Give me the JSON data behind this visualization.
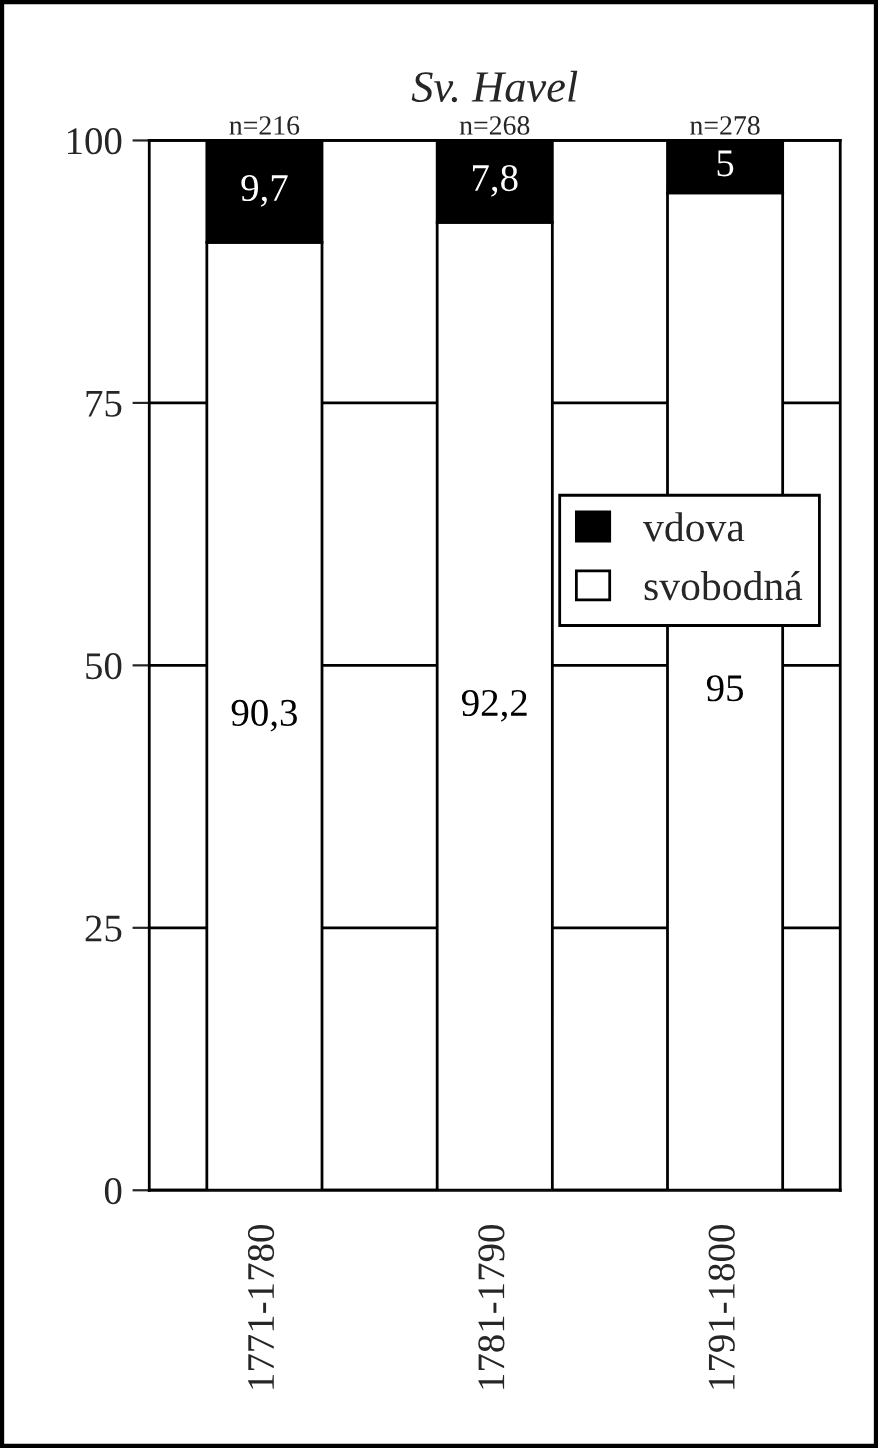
{
  "chart_data": {
    "type": "bar",
    "title": "Sv. Havel",
    "stacked": true,
    "categories": [
      "1771-1780",
      "1781-1790",
      "1791-1800"
    ],
    "series": [
      {
        "name": "svobodná",
        "color": "#ffffff",
        "values": [
          90.3,
          92.2,
          95
        ],
        "value_labels": [
          "90,3",
          "92,2",
          "95"
        ]
      },
      {
        "name": "vdova",
        "color": "#000000",
        "values": [
          9.7,
          7.8,
          5
        ],
        "value_labels": [
          "9,7",
          "7,8",
          "5"
        ]
      }
    ],
    "annotations": [
      {
        "text": "n=216",
        "x": "1771-1780",
        "y": 100
      },
      {
        "text": "n=268",
        "x": "1781-1790",
        "y": 100
      },
      {
        "text": "n=278",
        "x": "1791-1800",
        "y": 100
      }
    ],
    "ylim": [
      0,
      100
    ],
    "yticks": [
      0,
      25,
      50,
      75,
      100
    ],
    "grid": "y",
    "legend": "right"
  }
}
